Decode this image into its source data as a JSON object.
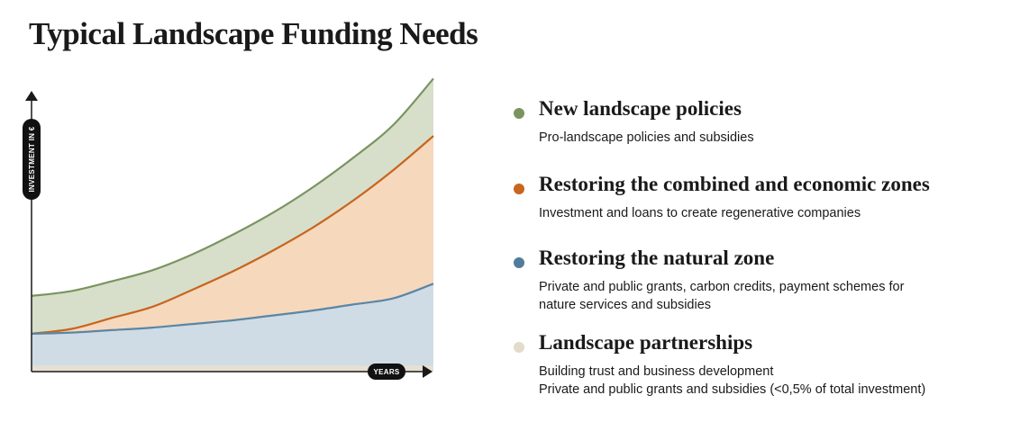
{
  "title": "Typical Landscape Funding Needs",
  "chart_data": {
    "type": "area",
    "ylabel": "INVESTMENT IN €",
    "xlabel": "YEARS",
    "x": [
      0,
      1,
      2,
      3,
      4,
      5,
      6,
      7,
      8,
      9,
      10
    ],
    "series": [
      {
        "name": "Landscape partnerships",
        "color": "#e6dfd2",
        "values": [
          0.5,
          0.5,
          0.5,
          0.5,
          0.5,
          0.5,
          0.5,
          0.5,
          0.5,
          0.5,
          0.5
        ]
      },
      {
        "name": "Restoring the natural zone",
        "color": "#cfdce5",
        "line": "#5a86a5",
        "values": [
          3.1,
          3.2,
          3.4,
          3.6,
          3.9,
          4.2,
          4.6,
          5.0,
          5.5,
          6.0,
          7.2
        ]
      },
      {
        "name": "Restoring the combined and economic zones",
        "color": "#f6d8bd",
        "line": "#c8651e",
        "values": [
          3.1,
          3.5,
          4.4,
          5.3,
          6.7,
          8.2,
          9.9,
          11.8,
          14.0,
          16.5,
          19.3
        ]
      },
      {
        "name": "New landscape policies",
        "color": "#d7dfcb",
        "line": "#7a9460",
        "values": [
          6.2,
          6.6,
          7.4,
          8.3,
          9.6,
          11.2,
          13.0,
          15.1,
          17.5,
          20.2,
          24.0
        ]
      }
    ],
    "ylim": [
      0,
      28
    ],
    "xlim": [
      0,
      10
    ]
  },
  "legend": [
    {
      "title": "New landscape policies",
      "color": "#7a9460",
      "lines": [
        "Pro-landscape policies and subsidies"
      ]
    },
    {
      "title": "Restoring the combined and economic zones",
      "color": "#c8651e",
      "lines": [
        "Investment and loans to create regenerative companies"
      ]
    },
    {
      "title": "Restoring the natural zone",
      "color": "#4f7c9c",
      "lines": [
        "Private and public grants, carbon credits, payment schemes for",
        "nature services and subsidies"
      ]
    },
    {
      "title": "Landscape partnerships",
      "color": "#e3dccb",
      "lines": [
        "Building trust and business development",
        "Private and public grants and subsidies (<0,5% of total investment)"
      ]
    }
  ]
}
